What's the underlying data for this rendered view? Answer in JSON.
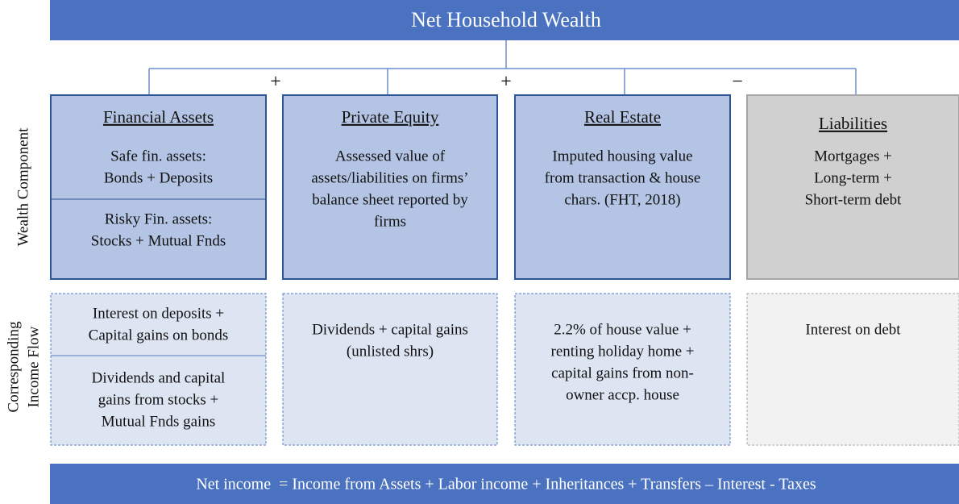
{
  "title": "Net Household Wealth",
  "operators": [
    "+",
    "+",
    "−"
  ],
  "row_labels": {
    "wealth": "Wealth Component",
    "income": [
      "Corresponding",
      "Income Flow"
    ]
  },
  "components": [
    {
      "heading": "Financial Assets",
      "wealth": [
        [
          "Safe fin. assets:",
          "Bonds + Deposits"
        ],
        [
          "Risky Fin. assets:",
          "Stocks + Mutual Fnds"
        ]
      ],
      "income": [
        [
          "Interest on deposits +",
          "Capital gains on bonds"
        ],
        [
          "Dividends and capital",
          "gains from stocks +",
          "Mutual Fnds gains"
        ]
      ]
    },
    {
      "heading": "Private Equity",
      "wealth": [
        [
          "Assessed value of",
          "assets/liabilities on firms’",
          "balance sheet reported by",
          "firms"
        ]
      ],
      "income": [
        [
          "Dividends + capital gains",
          "(unlisted shrs)"
        ]
      ]
    },
    {
      "heading": "Real Estate",
      "wealth": [
        [
          "Imputed housing value",
          "from transaction & house",
          "chars. (FHT, 2018)"
        ]
      ],
      "income": [
        [
          "2.2% of house value +",
          "renting holiday home +",
          "capital gains from non-",
          "owner accp. house"
        ]
      ]
    },
    {
      "heading": "Liabilities",
      "wealth": [
        [
          "Mortgages +",
          "Long-term +",
          "Short-term debt"
        ]
      ],
      "income": [
        [
          "Interest on debt"
        ]
      ]
    }
  ],
  "footer": "Net income  = Income from Assets + Labor income + Inheritances + Transfers – Interest - Taxes"
}
